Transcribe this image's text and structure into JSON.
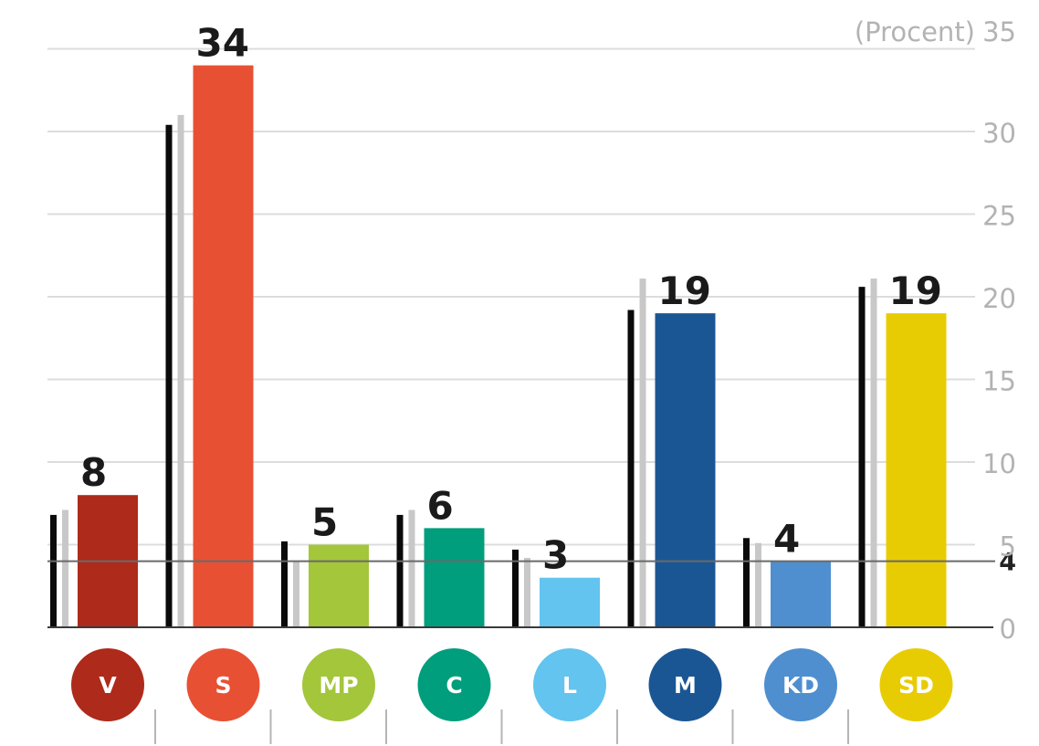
{
  "chart_data": {
    "type": "bar",
    "y_unit_label": "(Procent)",
    "ylim": [
      0,
      35
    ],
    "yticks": [
      0,
      5,
      10,
      15,
      20,
      25,
      30,
      35
    ],
    "threshold": {
      "value": 4,
      "label": "4"
    },
    "grid": true,
    "categories": [
      "V",
      "S",
      "MP",
      "C",
      "L",
      "M",
      "KD",
      "SD"
    ],
    "series": [
      {
        "role": "reference-black",
        "values": [
          6.8,
          30.4,
          5.2,
          6.8,
          4.7,
          19.2,
          5.4,
          20.6
        ]
      },
      {
        "role": "reference-gray",
        "values": [
          7.1,
          31.0,
          4.0,
          7.1,
          4.2,
          21.1,
          5.1,
          21.1
        ]
      },
      {
        "role": "main",
        "values": [
          8,
          34,
          5,
          6,
          3,
          19,
          4,
          19
        ]
      }
    ],
    "value_labels": [
      "8",
      "34",
      "5",
      "6",
      "3",
      "19",
      "4",
      "19"
    ],
    "colors": [
      "#ae2a1a",
      "#e85034",
      "#a3c63b",
      "#009e7c",
      "#62c4ef",
      "#1b5694",
      "#4f8fcf",
      "#e8cc03"
    ]
  }
}
